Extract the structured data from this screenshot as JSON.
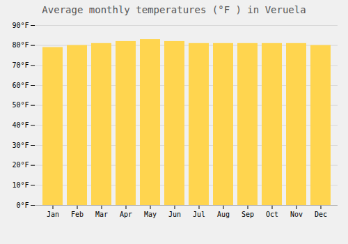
{
  "chart_data": {
    "type": "bar",
    "title": "Average monthly temperatures (°F ) in Veruela",
    "categories": [
      "Jan",
      "Feb",
      "Mar",
      "Apr",
      "May",
      "Jun",
      "Jul",
      "Aug",
      "Sep",
      "Oct",
      "Nov",
      "Dec"
    ],
    "values": [
      79,
      80,
      81,
      82,
      83,
      82,
      81,
      81,
      81,
      81,
      81,
      80
    ],
    "color": "#FFD54F",
    "ylim": [
      0,
      90
    ],
    "yticks": [
      {
        "value": 0,
        "label": "0°F"
      },
      {
        "value": 10,
        "label": "10°F"
      },
      {
        "value": 20,
        "label": "20°F"
      },
      {
        "value": 30,
        "label": "30°F"
      },
      {
        "value": 40,
        "label": "40°F"
      },
      {
        "value": 50,
        "label": "50°F"
      },
      {
        "value": 60,
        "label": "60°F"
      },
      {
        "value": 70,
        "label": "70°F"
      },
      {
        "value": 80,
        "label": "80°F"
      },
      {
        "value": 90,
        "label": "90°F"
      }
    ],
    "grid": true
  }
}
